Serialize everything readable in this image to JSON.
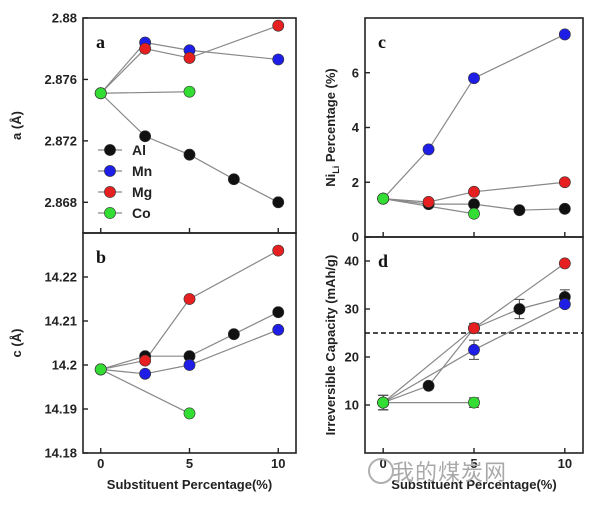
{
  "watermark": "我的煤炭网",
  "colors": {
    "Al": "#111111",
    "Mn": "#1e1ee6",
    "Mg": "#e62020",
    "Co": "#33dd33",
    "line": "#888888"
  },
  "chart_data": [
    {
      "panel": "a",
      "type": "scatter",
      "ylabel": "a (Å)",
      "xlim": [
        -1,
        11
      ],
      "ylim": [
        2.866,
        2.88
      ],
      "yticks": [
        "2.868",
        "2.872",
        "2.876",
        "2.88"
      ],
      "xticks": [],
      "legend": {
        "position": "bottom-left",
        "entries": [
          "Al",
          "Mn",
          "Mg",
          "Co"
        ]
      },
      "series": [
        {
          "name": "Al",
          "x": [
            0,
            2.5,
            5,
            7.5,
            10
          ],
          "y": [
            2.8751,
            2.8723,
            2.8711,
            2.8695,
            2.868
          ]
        },
        {
          "name": "Mn",
          "x": [
            0,
            2.5,
            5,
            10
          ],
          "y": [
            2.8751,
            2.8784,
            2.8779,
            2.8773
          ]
        },
        {
          "name": "Mg",
          "x": [
            0,
            2.5,
            5,
            10
          ],
          "y": [
            2.8751,
            2.878,
            2.8774,
            2.8795
          ]
        },
        {
          "name": "Co",
          "x": [
            0,
            5
          ],
          "y": [
            2.8751,
            2.8752
          ]
        }
      ]
    },
    {
      "panel": "b",
      "type": "scatter",
      "ylabel": "c (Å)",
      "xlabel": "Substituent Percentage(%)",
      "xlim": [
        -1,
        11
      ],
      "ylim": [
        14.18,
        14.23
      ],
      "xticks": [
        "0",
        "5",
        "10"
      ],
      "yticks": [
        "14.18",
        "14.19",
        "14.2",
        "14.21",
        "14.22"
      ],
      "series": [
        {
          "name": "Al",
          "x": [
            0,
            2.5,
            5,
            7.5,
            10
          ],
          "y": [
            14.199,
            14.202,
            14.202,
            14.207,
            14.212
          ]
        },
        {
          "name": "Mn",
          "x": [
            0,
            2.5,
            5,
            10
          ],
          "y": [
            14.199,
            14.198,
            14.2,
            14.208
          ]
        },
        {
          "name": "Mg",
          "x": [
            0,
            2.5,
            5,
            10
          ],
          "y": [
            14.199,
            14.201,
            14.215,
            14.226
          ]
        },
        {
          "name": "Co",
          "x": [
            0,
            5
          ],
          "y": [
            14.199,
            14.189
          ]
        }
      ]
    },
    {
      "panel": "c",
      "type": "scatter",
      "ylabel": "Ni",
      "ylabel_sub": "Li",
      "ylabel_rest": " Percentage (%)",
      "xlim": [
        -1,
        11
      ],
      "ylim": [
        0,
        8
      ],
      "yticks": [
        "0",
        "2",
        "4",
        "6"
      ],
      "xticks": [],
      "series": [
        {
          "name": "Al",
          "x": [
            0,
            2.5,
            5,
            7.5,
            10
          ],
          "y": [
            1.4,
            1.2,
            1.2,
            0.98,
            1.03
          ]
        },
        {
          "name": "Mn",
          "x": [
            0,
            2.5,
            5,
            10
          ],
          "y": [
            1.4,
            3.2,
            5.8,
            7.4
          ]
        },
        {
          "name": "Mg",
          "x": [
            0,
            2.5,
            5,
            10
          ],
          "y": [
            1.4,
            1.28,
            1.65,
            2.0
          ]
        },
        {
          "name": "Co",
          "x": [
            0,
            5
          ],
          "y": [
            1.4,
            0.85
          ]
        }
      ]
    },
    {
      "panel": "d",
      "type": "scatter",
      "ylabel": "Irreversible Capacity (mAh/g)",
      "xlabel": "Substituent Percentage(%)",
      "xlim": [
        -1,
        11
      ],
      "ylim": [
        0,
        45
      ],
      "xticks": [
        "0",
        "5",
        "10"
      ],
      "yticks": [
        "10",
        "20",
        "30",
        "40"
      ],
      "reference_line_y": 25,
      "series": [
        {
          "name": "Al",
          "x": [
            0,
            2.5,
            5,
            7.5,
            10
          ],
          "y": [
            10.5,
            14,
            26,
            30,
            32.5
          ],
          "err": [
            1.5,
            0,
            1,
            2,
            1.5
          ]
        },
        {
          "name": "Mn",
          "x": [
            0,
            5,
            10
          ],
          "y": [
            10.5,
            21.5,
            31
          ],
          "err": [
            1.5,
            2,
            0
          ]
        },
        {
          "name": "Mg",
          "x": [
            0,
            5,
            10
          ],
          "y": [
            10.5,
            26,
            39.5
          ],
          "err": [
            1.5,
            0,
            0
          ]
        },
        {
          "name": "Co",
          "x": [
            0,
            5
          ],
          "y": [
            10.5,
            10.5
          ],
          "err": [
            1.5,
            1
          ]
        }
      ]
    }
  ]
}
